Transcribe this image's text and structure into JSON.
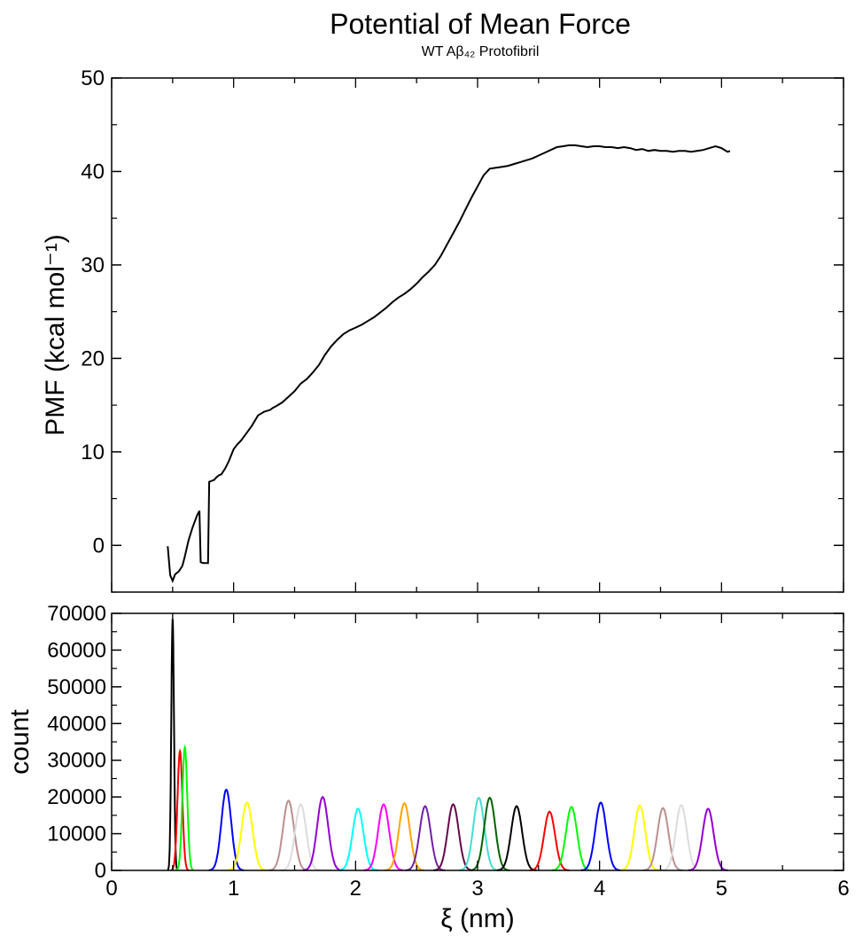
{
  "chart_data": [
    {
      "type": "line",
      "title": "Potential of Mean Force",
      "subtitle": "WT Aβ₄₂ Protofibril",
      "xlabel": "",
      "ylabel": "PMF (kcal mol⁻¹)",
      "xlim": [
        0,
        6
      ],
      "ylim": [
        -5,
        50
      ],
      "yticks": [
        0,
        10,
        20,
        30,
        40,
        50
      ],
      "grid": false,
      "series": [
        {
          "color": "#000000",
          "x": [
            0.46,
            0.48,
            0.5,
            0.52,
            0.55,
            0.58,
            0.6,
            0.63,
            0.66,
            0.7,
            0.72,
            0.73,
            0.75,
            0.77,
            0.79,
            0.8,
            0.82,
            0.84,
            0.86,
            0.88,
            0.9,
            0.93,
            0.96,
            1.0,
            1.03,
            1.06,
            1.1,
            1.15,
            1.2,
            1.25,
            1.3,
            1.32,
            1.35,
            1.4,
            1.45,
            1.5,
            1.55,
            1.6,
            1.65,
            1.7,
            1.75,
            1.8,
            1.85,
            1.9,
            1.95,
            2.0,
            2.05,
            2.1,
            2.15,
            2.2,
            2.25,
            2.3,
            2.35,
            2.4,
            2.45,
            2.5,
            2.55,
            2.6,
            2.65,
            2.7,
            2.75,
            2.8,
            2.85,
            2.9,
            2.95,
            3.0,
            3.05,
            3.1,
            3.15,
            3.2,
            3.25,
            3.3,
            3.35,
            3.4,
            3.45,
            3.5,
            3.55,
            3.6,
            3.65,
            3.7,
            3.75,
            3.8,
            3.85,
            3.9,
            3.95,
            4.0,
            4.05,
            4.1,
            4.15,
            4.2,
            4.25,
            4.3,
            4.35,
            4.4,
            4.45,
            4.5,
            4.55,
            4.6,
            4.65,
            4.7,
            4.75,
            4.8,
            4.85,
            4.9,
            4.95,
            5.0,
            5.05,
            5.07
          ],
          "y": [
            -0.1,
            -3.2,
            -3.8,
            -3.1,
            -2.8,
            -2.2,
            -1.2,
            0.5,
            1.8,
            3.2,
            3.7,
            -1.8,
            -1.9,
            -1.9,
            -1.9,
            6.8,
            6.9,
            7.0,
            7.3,
            7.5,
            7.6,
            8.2,
            9.0,
            10.3,
            10.8,
            11.2,
            11.9,
            12.8,
            13.9,
            14.3,
            14.5,
            14.7,
            14.9,
            15.3,
            15.9,
            16.5,
            17.3,
            17.8,
            18.5,
            19.3,
            20.4,
            21.3,
            22.0,
            22.6,
            23.0,
            23.3,
            23.6,
            24.0,
            24.4,
            24.9,
            25.4,
            26.0,
            26.5,
            26.9,
            27.4,
            28.0,
            28.7,
            29.3,
            30.0,
            31.0,
            32.2,
            33.4,
            34.6,
            35.9,
            37.2,
            38.4,
            39.6,
            40.3,
            40.4,
            40.5,
            40.6,
            40.8,
            41.0,
            41.2,
            41.4,
            41.7,
            42.0,
            42.3,
            42.6,
            42.7,
            42.8,
            42.8,
            42.7,
            42.6,
            42.7,
            42.7,
            42.6,
            42.6,
            42.5,
            42.6,
            42.5,
            42.3,
            42.4,
            42.2,
            42.3,
            42.2,
            42.2,
            42.1,
            42.2,
            42.2,
            42.1,
            42.2,
            42.3,
            42.5,
            42.7,
            42.5,
            42.1,
            42.2
          ]
        }
      ]
    },
    {
      "type": "line",
      "title": "",
      "xlabel": "ξ (nm)",
      "ylabel": "count",
      "xlim": [
        0,
        6
      ],
      "ylim": [
        0,
        70000
      ],
      "xticks": [
        0,
        1,
        2,
        3,
        4,
        5,
        6
      ],
      "yticks": [
        0,
        10000,
        20000,
        30000,
        40000,
        50000,
        60000,
        70000
      ],
      "grid": false,
      "histograms": [
        {
          "color": "#000000",
          "center": 0.5,
          "peak": 68500,
          "width": 0.011
        },
        {
          "color": "#ff0000",
          "center": 0.56,
          "peak": 32500,
          "width": 0.02
        },
        {
          "color": "#00ff00",
          "center": 0.6,
          "peak": 33500,
          "width": 0.02
        },
        {
          "color": "#0000ff",
          "center": 0.94,
          "peak": 22000,
          "width": 0.04
        },
        {
          "color": "#ffff00",
          "center": 1.11,
          "peak": 18500,
          "width": 0.045
        },
        {
          "color": "#bc8f8f",
          "center": 1.45,
          "peak": 19000,
          "width": 0.045
        },
        {
          "color": "#dcdcdc",
          "center": 1.55,
          "peak": 18000,
          "width": 0.045
        },
        {
          "color": "#9400d3",
          "center": 1.73,
          "peak": 20000,
          "width": 0.045
        },
        {
          "color": "#00ffff",
          "center": 2.02,
          "peak": 16800,
          "width": 0.045
        },
        {
          "color": "#ff00ff",
          "center": 2.23,
          "peak": 18000,
          "width": 0.045
        },
        {
          "color": "#ffa500",
          "center": 2.4,
          "peak": 18300,
          "width": 0.045
        },
        {
          "color": "#7220a6",
          "center": 2.57,
          "peak": 17500,
          "width": 0.045
        },
        {
          "color": "#670748",
          "center": 2.8,
          "peak": 18000,
          "width": 0.045
        },
        {
          "color": "#40e0d0",
          "center": 3.01,
          "peak": 19800,
          "width": 0.045
        },
        {
          "color": "#006400",
          "center": 3.1,
          "peak": 19800,
          "width": 0.045
        },
        {
          "color": "#000000",
          "center": 3.32,
          "peak": 17500,
          "width": 0.045
        },
        {
          "color": "#ff0000",
          "center": 3.59,
          "peak": 16000,
          "width": 0.045
        },
        {
          "color": "#00ff00",
          "center": 3.77,
          "peak": 17300,
          "width": 0.045
        },
        {
          "color": "#0000ff",
          "center": 4.01,
          "peak": 18500,
          "width": 0.045
        },
        {
          "color": "#ffff00",
          "center": 4.33,
          "peak": 17700,
          "width": 0.045
        },
        {
          "color": "#bc8f8f",
          "center": 4.52,
          "peak": 17000,
          "width": 0.045
        },
        {
          "color": "#dcdcdc",
          "center": 4.67,
          "peak": 17800,
          "width": 0.045
        },
        {
          "color": "#9400d3",
          "center": 4.89,
          "peak": 16800,
          "width": 0.045
        }
      ]
    }
  ]
}
